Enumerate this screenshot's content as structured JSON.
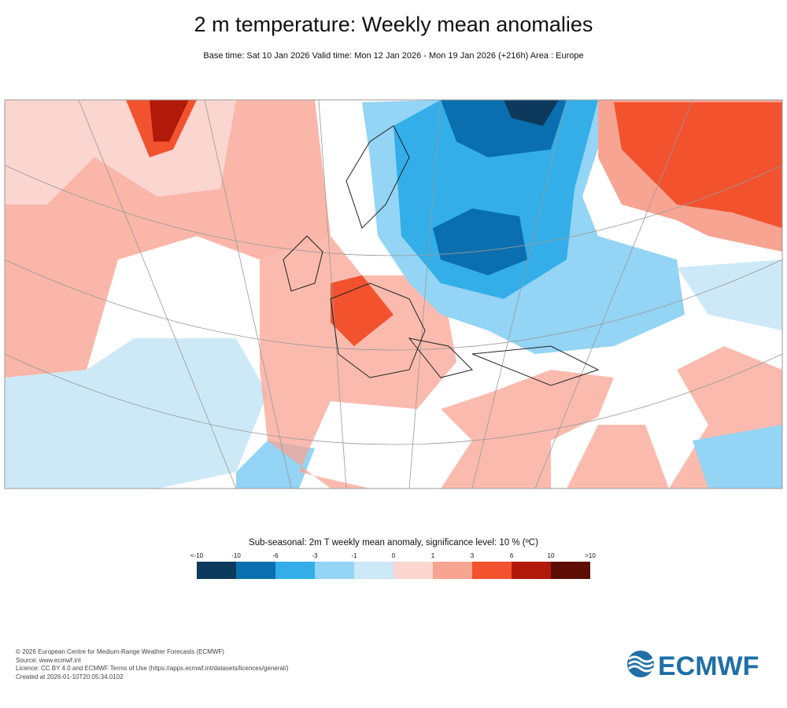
{
  "header": {
    "title": "2 m temperature: Weekly mean anomalies",
    "subtitle": "Base time: Sat 10 Jan 2026 Valid time: Mon 12 Jan 2026 - Mon 19 Jan 2026 (+216h) Area : Europe"
  },
  "legend": {
    "title": "Sub-seasonal: 2m T weekly mean anomaly, significance level: 10 % (ºC)",
    "labels": [
      "<-10",
      "-10",
      "-6",
      "-3",
      "-1",
      "0",
      "1",
      "3",
      "6",
      "10",
      ">10"
    ],
    "colors": [
      "#0d3a5c",
      "#0a6fae",
      "#33aee8",
      "#94d4f4",
      "#cde9f7",
      "#fbd5cf",
      "#f8a493",
      "#f2522e",
      "#b11a0a",
      "#5e0d05"
    ]
  },
  "footer": [
    "© 2026 European Centre for Medium-Range Weather Forecasts (ECMWF)",
    "Source: www.ecmwf.int",
    "Licence: CC BY 4.0 and ECMWF Terms of Use (https://apps.ecmwf.int/datasets/licences/general/)",
    "Created at 2026-01-10T20:05:34.0102"
  ],
  "logo": "ECMWF"
}
